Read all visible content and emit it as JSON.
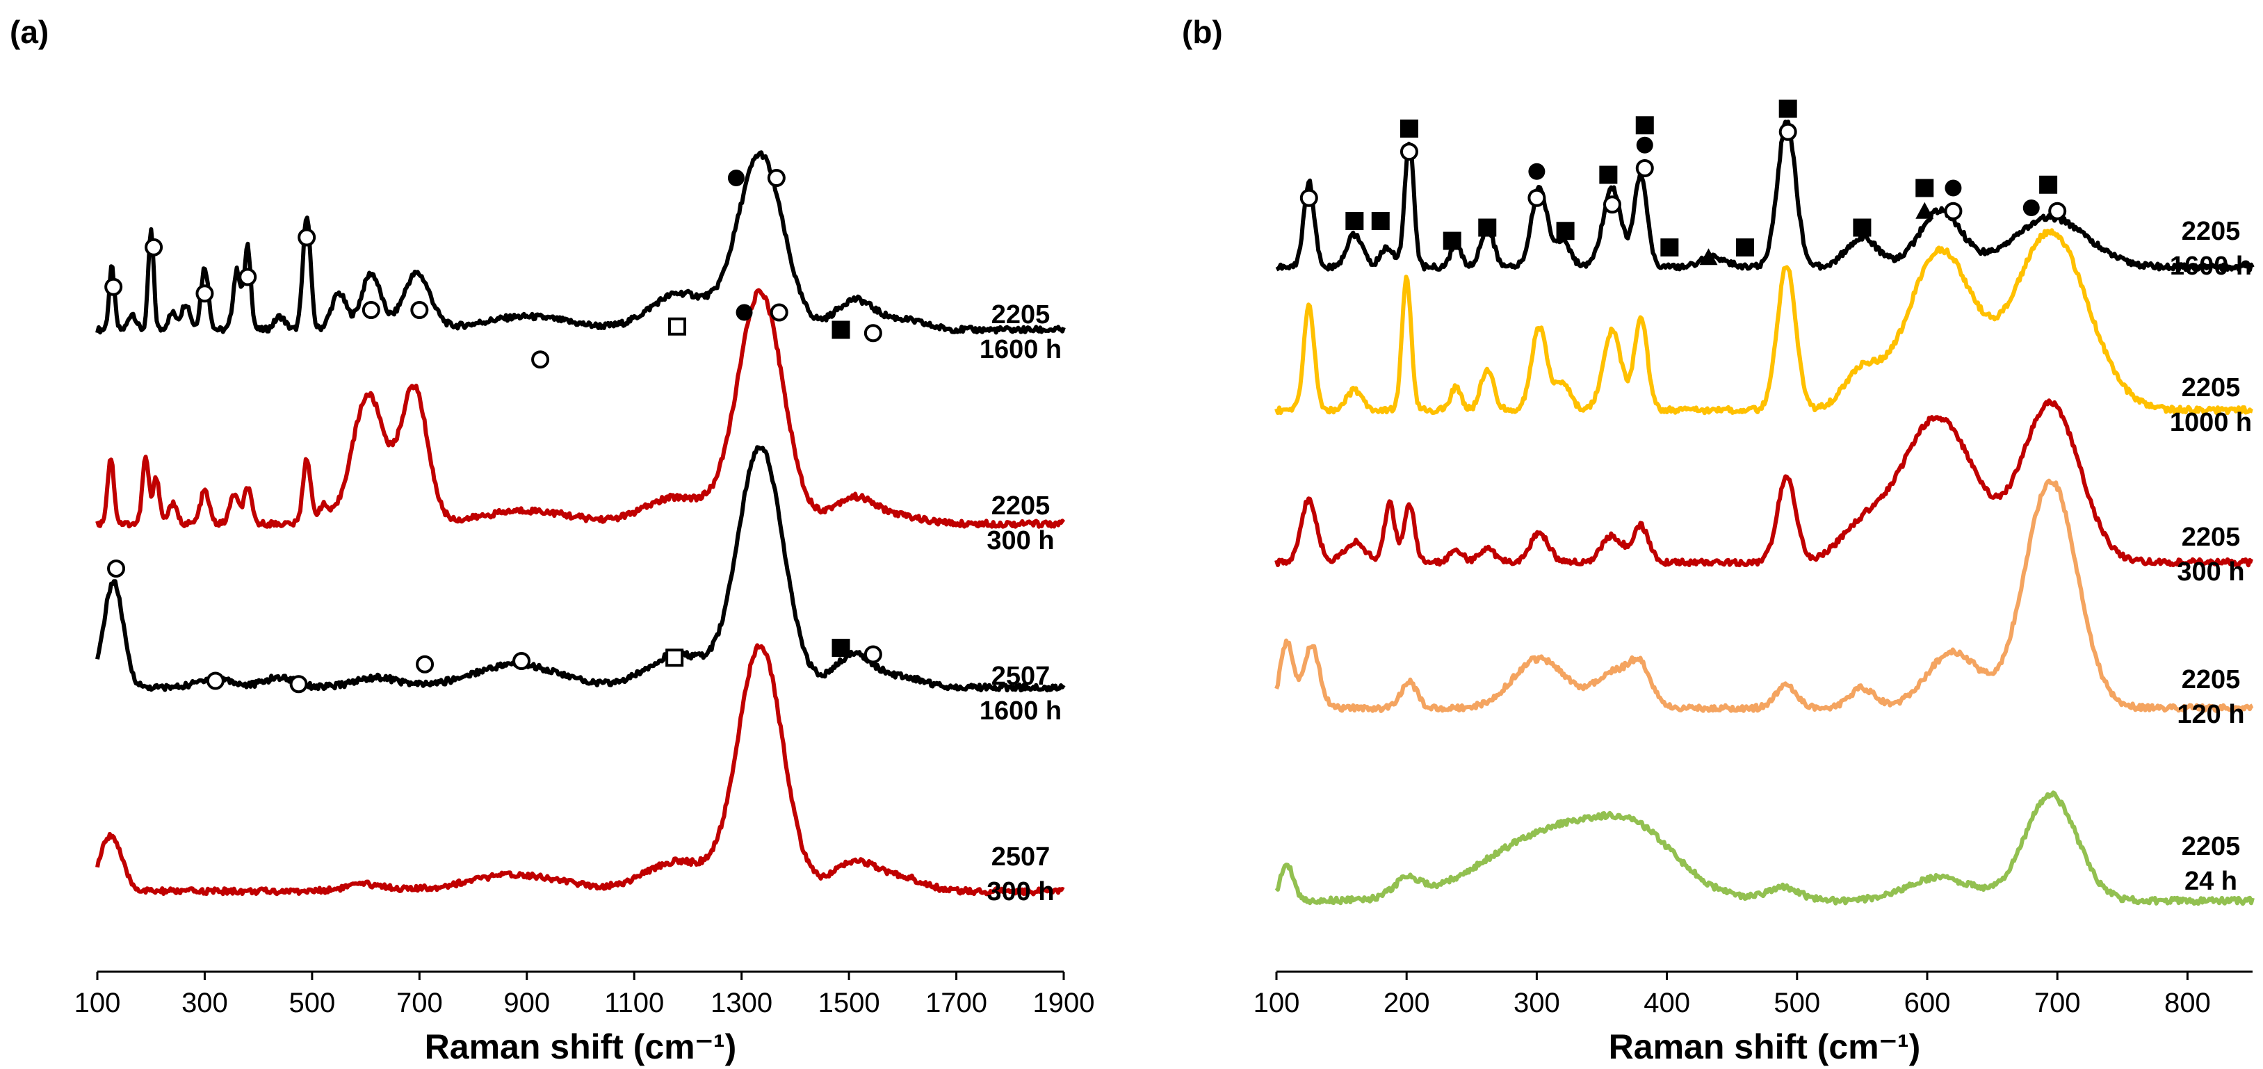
{
  "chart_data": [
    {
      "panel": "(a)",
      "type": "line",
      "xlabel": "Raman shift (cm⁻¹)",
      "ylabel": "",
      "xlim": [
        100,
        1900
      ],
      "xticks": [
        "100",
        "300",
        "500",
        "700",
        "900",
        "1100",
        "1300",
        "1500",
        "1700",
        "1900"
      ],
      "series": [
        {
          "name": "2205 1600 h",
          "label_line1": "2205",
          "label_line2": "1600 h",
          "color": "#000000",
          "baseline": 0.9,
          "tilt": 0.0,
          "peaks": [
            [
              127,
              0.95,
              5
            ],
            [
              165,
              0.25,
              7
            ],
            [
              200,
              1.5,
              5
            ],
            [
              240,
              0.25,
              8
            ],
            [
              265,
              0.4,
              8
            ],
            [
              300,
              0.95,
              7
            ],
            [
              360,
              0.9,
              7
            ],
            [
              380,
              1.25,
              6
            ],
            [
              440,
              0.2,
              10
            ],
            [
              490,
              1.75,
              7
            ],
            [
              550,
              0.55,
              14
            ],
            [
              610,
              0.85,
              18
            ],
            [
              695,
              0.85,
              25
            ],
            [
              900,
              0.2,
              80
            ],
            [
              1185,
              0.55,
              55
            ],
            [
              1335,
              2.65,
              42
            ],
            [
              1510,
              0.45,
              35
            ],
            [
              1600,
              0.15,
              40
            ]
          ],
          "markers": [
            [
              "open-circle",
              130,
              1.55
            ],
            [
              "open-circle",
              205,
              2.15
            ],
            [
              "open-circle",
              300,
              1.45
            ],
            [
              "open-circle",
              380,
              1.7
            ],
            [
              "open-circle",
              490,
              2.3
            ],
            [
              "open-circle",
              610,
              1.2
            ],
            [
              "open-circle",
              700,
              1.2
            ],
            [
              "open-circle",
              925,
              0.45
            ],
            [
              "open-square",
              1180,
              0.95
            ],
            [
              "filled-circle",
              1290,
              3.2
            ],
            [
              "open-circle",
              1365,
              3.2
            ],
            [
              "filled-square",
              1485,
              0.9
            ],
            [
              "open-circle",
              1545,
              0.85
            ]
          ]
        },
        {
          "name": "2205 300 h",
          "label_line1": "2205",
          "label_line2": "300 h",
          "color": "#C00000",
          "baseline": 0.7,
          "tilt": 0.0,
          "peaks": [
            [
              125,
              1.0,
              6
            ],
            [
              190,
              1.0,
              6
            ],
            [
              210,
              0.7,
              6
            ],
            [
              240,
              0.3,
              8
            ],
            [
              300,
              0.5,
              8
            ],
            [
              355,
              0.45,
              8
            ],
            [
              380,
              0.55,
              7
            ],
            [
              490,
              1.0,
              7
            ],
            [
              520,
              0.25,
              10
            ],
            [
              605,
              1.95,
              30
            ],
            [
              690,
              2.05,
              25
            ],
            [
              900,
              0.2,
              80
            ],
            [
              1180,
              0.4,
              60
            ],
            [
              1335,
              3.5,
              42
            ],
            [
              1510,
              0.4,
              40
            ],
            [
              1600,
              0.1,
              40
            ]
          ],
          "markers": [
            [
              "filled-circle",
              1305,
              3.9
            ],
            [
              "open-circle",
              1370,
              3.9
            ]
          ]
        },
        {
          "name": "2507 1600 h",
          "label_line1": "2507",
          "label_line2": "1600 h",
          "color": "#000000",
          "baseline": 0.8,
          "tilt": 0.0,
          "peaks": [
            [
              130,
              1.6,
              18
            ],
            [
              320,
              0.15,
              30
            ],
            [
              440,
              0.15,
              30
            ],
            [
              620,
              0.15,
              40
            ],
            [
              880,
              0.35,
              80
            ],
            [
              1180,
              0.5,
              55
            ],
            [
              1335,
              3.65,
              42
            ],
            [
              1510,
              0.5,
              35
            ],
            [
              1600,
              0.15,
              40
            ]
          ],
          "markers": [
            [
              "open-circle",
              135,
              2.6
            ],
            [
              "open-circle",
              320,
              0.9
            ],
            [
              "open-circle",
              475,
              0.85
            ],
            [
              "open-circle",
              710,
              1.15
            ],
            [
              "open-circle",
              890,
              1.2
            ],
            [
              "open-square",
              1175,
              1.25
            ],
            [
              "filled-square",
              1485,
              1.4
            ],
            [
              "open-circle",
              1545,
              1.3
            ]
          ]
        },
        {
          "name": "2507 300 h",
          "label_line1": "2507",
          "label_line2": "300 h",
          "color": "#C00000",
          "baseline": 0.45,
          "tilt": 0.0,
          "peaks": [
            [
              125,
              0.85,
              20
            ],
            [
              600,
              0.1,
              40
            ],
            [
              880,
              0.25,
              90
            ],
            [
              1180,
              0.45,
              60
            ],
            [
              1335,
              3.7,
              42
            ],
            [
              1510,
              0.45,
              40
            ],
            [
              1600,
              0.2,
              40
            ]
          ],
          "markers": []
        }
      ]
    },
    {
      "panel": "(b)",
      "type": "line",
      "xlabel": "Raman shift (cm⁻¹)",
      "ylabel": "",
      "xlim": [
        100,
        850
      ],
      "xticks": [
        "100",
        "200",
        "300",
        "400",
        "500",
        "600",
        "700",
        "800"
      ],
      "series": [
        {
          "name": "2205 1600 h",
          "label_line1": "2205",
          "label_line2": "1600 h",
          "color": "#000000",
          "baseline": 0.9,
          "tilt": 0.0,
          "peaks": [
            [
              125,
              1.3,
              4
            ],
            [
              160,
              0.5,
              6
            ],
            [
              185,
              0.3,
              5
            ],
            [
              202,
              1.9,
              3.5
            ],
            [
              238,
              0.35,
              4
            ],
            [
              262,
              0.6,
              5
            ],
            [
              302,
              1.2,
              6
            ],
            [
              320,
              0.4,
              6
            ],
            [
              358,
              1.2,
              7
            ],
            [
              380,
              1.4,
              5
            ],
            [
              435,
              0.15,
              10
            ],
            [
              492,
              2.2,
              7
            ],
            [
              550,
              0.45,
              12
            ],
            [
              610,
              0.85,
              16
            ],
            [
              695,
              0.75,
              28
            ]
          ],
          "markers": [
            [
              "open-circle",
              125,
              1.95
            ],
            [
              "filled-square",
              160,
              1.6
            ],
            [
              "filled-square",
              180,
              1.6
            ],
            [
              "filled-square",
              202,
              3.0
            ],
            [
              "open-circle",
              202,
              2.65
            ],
            [
              "filled-square",
              235,
              1.3
            ],
            [
              "filled-square",
              262,
              1.5
            ],
            [
              "filled-circle",
              300,
              2.35
            ],
            [
              "open-circle",
              300,
              1.95
            ],
            [
              "filled-square",
              322,
              1.45
            ],
            [
              "filled-square",
              355,
              2.3
            ],
            [
              "open-circle",
              358,
              1.85
            ],
            [
              "filled-square",
              383,
              3.05
            ],
            [
              "filled-circle",
              383,
              2.75
            ],
            [
              "open-circle",
              383,
              2.4
            ],
            [
              "filled-square",
              402,
              1.2
            ],
            [
              "filled-triangle",
              432,
              1.05
            ],
            [
              "filled-square",
              460,
              1.2
            ],
            [
              "filled-square",
              493,
              3.3
            ],
            [
              "open-circle",
              493,
              2.95
            ],
            [
              "filled-square",
              550,
              1.5
            ],
            [
              "filled-square",
              598,
              2.1
            ],
            [
              "filled-circle",
              620,
              2.1
            ],
            [
              "filled-triangle",
              598,
              1.75
            ],
            [
              "open-circle",
              620,
              1.75
            ],
            [
              "filled-square",
              693,
              2.15
            ],
            [
              "filled-circle",
              680,
              1.8
            ],
            [
              "open-circle",
              700,
              1.75
            ]
          ]
        },
        {
          "name": "2205 1000 h",
          "label_line1": "2205",
          "label_line2": "1000 h",
          "color": "#FFC000",
          "baseline": 1.0,
          "tilt": 0.0,
          "peaks": [
            [
              125,
              1.6,
              4
            ],
            [
              160,
              0.3,
              6
            ],
            [
              200,
              2.0,
              3.5
            ],
            [
              238,
              0.35,
              4
            ],
            [
              262,
              0.6,
              5
            ],
            [
              302,
              1.25,
              6
            ],
            [
              320,
              0.4,
              6
            ],
            [
              358,
              1.2,
              7
            ],
            [
              380,
              1.4,
              5
            ],
            [
              492,
              2.2,
              7
            ],
            [
              550,
              0.55,
              14
            ],
            [
              610,
              2.4,
              25
            ],
            [
              695,
              2.7,
              28
            ]
          ],
          "markers": []
        },
        {
          "name": "2205 300 h",
          "label_line1": "2205",
          "label_line2": "300 h",
          "color": "#C00000",
          "baseline": 0.8,
          "tilt": 0.0,
          "peaks": [
            [
              125,
              0.95,
              6
            ],
            [
              160,
              0.3,
              8
            ],
            [
              187,
              0.9,
              4
            ],
            [
              202,
              0.9,
              4
            ],
            [
              238,
              0.2,
              5
            ],
            [
              262,
              0.2,
              6
            ],
            [
              302,
              0.45,
              7
            ],
            [
              358,
              0.4,
              8
            ],
            [
              380,
              0.55,
              6
            ],
            [
              492,
              1.3,
              7
            ],
            [
              550,
              0.45,
              18
            ],
            [
              608,
              2.2,
              28
            ],
            [
              695,
              2.4,
              22
            ]
          ],
          "markers": []
        },
        {
          "name": "2205 120 h",
          "label_line1": "2205",
          "label_line2": "120 h",
          "color": "#F4A460",
          "baseline": 0.75,
          "tilt": 0.0,
          "peaks": [
            [
              108,
              1.0,
              5
            ],
            [
              127,
              0.95,
              6
            ],
            [
              202,
              0.4,
              6
            ],
            [
              302,
              0.75,
              20
            ],
            [
              360,
              0.55,
              15
            ],
            [
              380,
              0.5,
              8
            ],
            [
              492,
              0.35,
              8
            ],
            [
              550,
              0.3,
              10
            ],
            [
              620,
              0.85,
              20
            ],
            [
              695,
              3.45,
              20
            ]
          ],
          "markers": []
        },
        {
          "name": "2205 24 h",
          "label_line1": "2205",
          "label_line2": "24 h",
          "color": "#92C050",
          "baseline": 0.2,
          "tilt": 0.0,
          "peaks": [
            [
              108,
              0.55,
              5
            ],
            [
              200,
              0.25,
              10
            ],
            [
              320,
              1.1,
              55
            ],
            [
              380,
              0.55,
              30
            ],
            [
              490,
              0.2,
              12
            ],
            [
              610,
              0.35,
              25
            ],
            [
              695,
              1.6,
              20
            ]
          ],
          "markers": []
        }
      ]
    }
  ]
}
